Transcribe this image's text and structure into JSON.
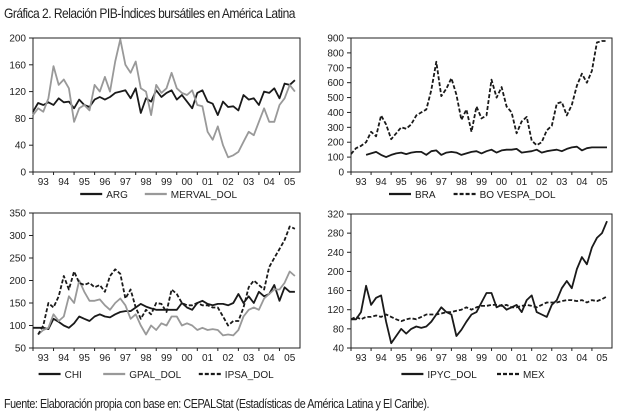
{
  "title": "Gráfica 2. Relación PIB-Índices bursátiles en América Latina",
  "footer": "Fuente: Elaboración propia con base en: CEPALStat (Estadísticas de América Latina y El Caribe).",
  "chart_data": [
    {
      "type": "line",
      "x_start": 1993,
      "x_step": 0.25,
      "xtick_labels": [
        "93",
        "94",
        "95",
        "96",
        "97",
        "98",
        "99",
        "00",
        "01",
        "02",
        "03",
        "04",
        "05"
      ],
      "ylim": [
        0,
        200
      ],
      "yticks": [
        0,
        40,
        80,
        120,
        160,
        200
      ],
      "legend": "bottom",
      "series": [
        {
          "name": "ARG",
          "color": "#1a1a1a",
          "dash": "",
          "values": [
            90,
            103,
            100,
            104,
            100,
            110,
            104,
            105,
            95,
            108,
            100,
            97,
            108,
            112,
            108,
            112,
            118,
            120,
            122,
            110,
            125,
            88,
            110,
            105,
            122,
            112,
            118,
            122,
            108,
            115,
            105,
            95,
            118,
            122,
            105,
            102,
            85,
            105,
            97,
            98,
            92,
            115,
            108,
            110,
            100,
            120,
            118,
            125,
            110,
            132,
            130,
            137
          ]
        },
        {
          "name": "MERVAL_DOL",
          "color": "#999999",
          "dash": "",
          "values": [
            85,
            95,
            90,
            110,
            158,
            130,
            138,
            125,
            75,
            95,
            100,
            92,
            130,
            120,
            142,
            120,
            165,
            198,
            160,
            148,
            165,
            125,
            120,
            85,
            130,
            118,
            125,
            148,
            125,
            118,
            115,
            122,
            100,
            98,
            60,
            48,
            68,
            40,
            22,
            25,
            30,
            45,
            60,
            55,
            75,
            95,
            75,
            75,
            100,
            110,
            130,
            120
          ]
        }
      ]
    },
    {
      "type": "line",
      "x_start": 1993,
      "x_step": 0.25,
      "xtick_labels": [
        "93",
        "94",
        "95",
        "96",
        "97",
        "98",
        "99",
        "00",
        "01",
        "02",
        "03",
        "04",
        "05"
      ],
      "ylim": [
        0,
        900
      ],
      "yticks": [
        0,
        100,
        200,
        300,
        400,
        500,
        600,
        700,
        800,
        900
      ],
      "legend": "bottom",
      "series": [
        {
          "name": "BRA",
          "color": "#1a1a1a",
          "dash": "",
          "values": [
            null,
            null,
            null,
            115,
            125,
            135,
            115,
            100,
            115,
            125,
            130,
            120,
            130,
            135,
            135,
            115,
            140,
            145,
            115,
            130,
            135,
            130,
            115,
            125,
            135,
            140,
            125,
            140,
            150,
            130,
            145,
            150,
            150,
            155,
            130,
            135,
            140,
            150,
            130,
            140,
            145,
            150,
            140,
            155,
            165,
            170,
            145,
            160,
            165,
            165,
            165,
            165
          ]
        },
        {
          "name": "BO VESPA_DOL",
          "color": "#1a1a1a",
          "dash": "4,2",
          "values": [
            120,
            160,
            175,
            200,
            270,
            240,
            380,
            320,
            220,
            260,
            300,
            290,
            320,
            380,
            400,
            420,
            550,
            740,
            510,
            560,
            630,
            520,
            350,
            420,
            270,
            440,
            360,
            380,
            620,
            500,
            570,
            440,
            400,
            260,
            340,
            370,
            210,
            180,
            200,
            280,
            310,
            460,
            470,
            380,
            450,
            580,
            660,
            600,
            680,
            870,
            880,
            880
          ]
        }
      ]
    },
    {
      "type": "line",
      "x_start": 1993,
      "x_step": 0.25,
      "xtick_labels": [
        "93",
        "94",
        "95",
        "96",
        "97",
        "98",
        "99",
        "00",
        "01",
        "02",
        "03",
        "04",
        "05"
      ],
      "ylim": [
        50,
        350
      ],
      "yticks": [
        50,
        100,
        150,
        200,
        250,
        300,
        350
      ],
      "legend": "bottom",
      "series": [
        {
          "name": "CHI",
          "color": "#1a1a1a",
          "dash": "",
          "values": [
            95,
            95,
            95,
            92,
            115,
            108,
            100,
            95,
            105,
            120,
            115,
            110,
            120,
            125,
            120,
            118,
            125,
            130,
            132,
            132,
            140,
            148,
            142,
            138,
            135,
            135,
            135,
            135,
            135,
            150,
            140,
            135,
            150,
            155,
            148,
            145,
            148,
            148,
            145,
            150,
            170,
            150,
            165,
            150,
            175,
            165,
            170,
            190,
            155,
            185,
            175,
            175
          ]
        },
        {
          "name": "GPAL_DOL",
          "color": "#999999",
          "dash": "",
          "values": [
            null,
            80,
            90,
            95,
            125,
            110,
            120,
            165,
            150,
            200,
            175,
            155,
            155,
            158,
            145,
            135,
            150,
            160,
            145,
            115,
            125,
            100,
            80,
            100,
            90,
            105,
            100,
            120,
            120,
            100,
            105,
            100,
            90,
            95,
            90,
            92,
            90,
            78,
            80,
            78,
            90,
            120,
            135,
            140,
            135,
            160,
            170,
            180,
            180,
            195,
            220,
            210
          ]
        },
        {
          "name": "IPSA_DOL",
          "color": "#1a1a1a",
          "dash": "4,2",
          "values": [
            null,
            80,
            100,
            150,
            140,
            165,
            210,
            180,
            220,
            195,
            190,
            195,
            185,
            190,
            175,
            210,
            225,
            215,
            160,
            180,
            140,
            115,
            135,
            125,
            150,
            148,
            130,
            180,
            170,
            150,
            145,
            145,
            150,
            145,
            145,
            140,
            140,
            120,
            100,
            110,
            110,
            140,
            185,
            200,
            190,
            180,
            230,
            250,
            270,
            290,
            320,
            315
          ]
        }
      ]
    },
    {
      "type": "line",
      "x_start": 1993,
      "x_step": 0.25,
      "xtick_labels": [
        "93",
        "94",
        "95",
        "96",
        "97",
        "98",
        "99",
        "00",
        "01",
        "02",
        "03",
        "04",
        "05"
      ],
      "ylim": [
        40,
        320
      ],
      "yticks": [
        40,
        80,
        120,
        160,
        200,
        240,
        280,
        320
      ],
      "legend": "bottom",
      "series": [
        {
          "name": "IPYC_DOL",
          "color": "#1a1a1a",
          "dash": "",
          "values": [
            100,
            100,
            115,
            170,
            130,
            145,
            150,
            95,
            50,
            65,
            80,
            70,
            80,
            85,
            82,
            85,
            95,
            110,
            125,
            115,
            110,
            65,
            78,
            95,
            110,
            115,
            135,
            155,
            155,
            125,
            130,
            120,
            125,
            130,
            115,
            140,
            150,
            115,
            110,
            105,
            130,
            140,
            165,
            180,
            165,
            205,
            230,
            215,
            250,
            270,
            280,
            305
          ]
        },
        {
          "name": "MEX",
          "color": "#1a1a1a",
          "dash": "4,2",
          "values": [
            100,
            105,
            100,
            105,
            105,
            108,
            105,
            110,
            105,
            100,
            96,
            100,
            102,
            100,
            105,
            110,
            110,
            110,
            112,
            115,
            115,
            118,
            120,
            125,
            120,
            125,
            128,
            128,
            130,
            130,
            128,
            130,
            125,
            125,
            128,
            130,
            128,
            125,
            130,
            135,
            135,
            135,
            138,
            140,
            140,
            138,
            140,
            135,
            140,
            138,
            142,
            148
          ]
        }
      ]
    }
  ]
}
